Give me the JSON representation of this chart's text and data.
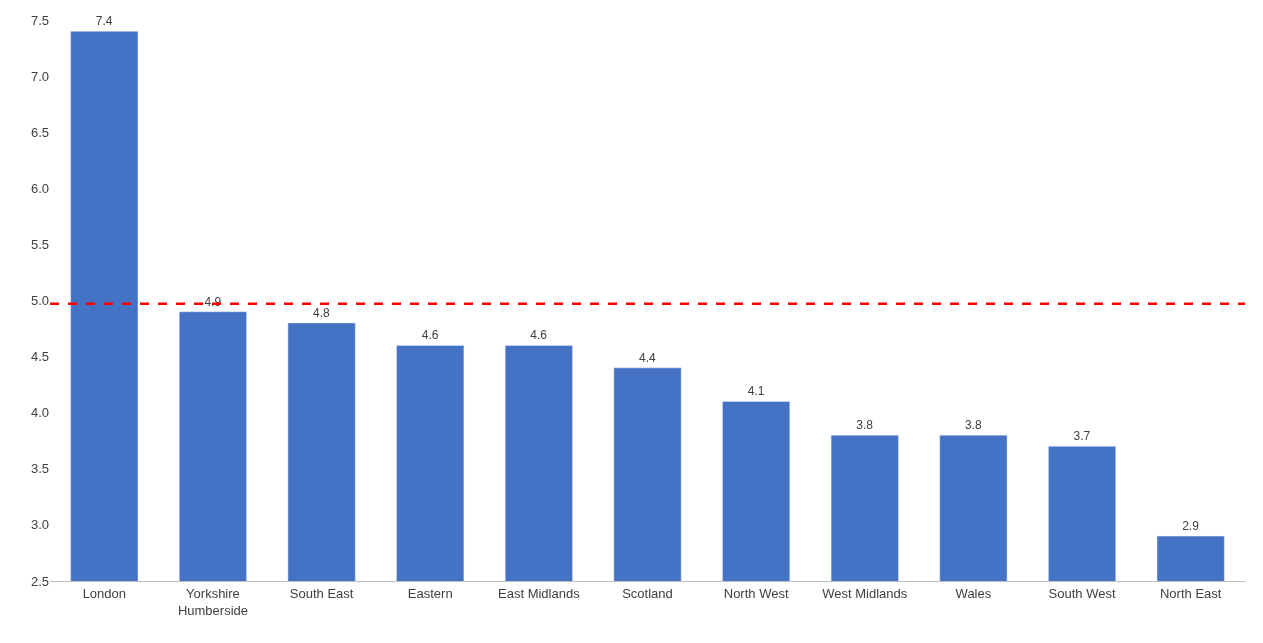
{
  "chart_data": {
    "type": "bar",
    "categories": [
      "London",
      "Yorkshire\nHumberside",
      "South East",
      "Eastern",
      "East Midlands",
      "Scotland",
      "North West",
      "West Midlands",
      "Wales",
      "South West",
      "North East"
    ],
    "values": [
      7.4,
      4.9,
      4.8,
      4.6,
      4.6,
      4.4,
      4.1,
      3.8,
      3.8,
      3.7,
      2.9
    ],
    "color": "#4472c4",
    "data_labels": true,
    "ylim": [
      2.5,
      7.5
    ],
    "yticks": [
      {
        "value": 2.5,
        "label": "2.5"
      },
      {
        "value": 3.0,
        "label": "3.0"
      },
      {
        "value": 3.5,
        "label": "3.5"
      },
      {
        "value": 4.0,
        "label": "4.0"
      },
      {
        "value": 4.5,
        "label": "4.5"
      },
      {
        "value": 5.0,
        "label": "5.0"
      },
      {
        "value": 5.5,
        "label": "5.5"
      },
      {
        "value": 6.0,
        "label": "6.0"
      },
      {
        "value": 6.5,
        "label": "6.5"
      },
      {
        "value": 7.0,
        "label": "7.0"
      },
      {
        "value": 7.5,
        "label": "7.5"
      }
    ],
    "grid": false,
    "ref_lines": [
      {
        "axis": "y",
        "value": 4.97,
        "color": "#ff0000",
        "line_style": "dashed"
      }
    ]
  }
}
